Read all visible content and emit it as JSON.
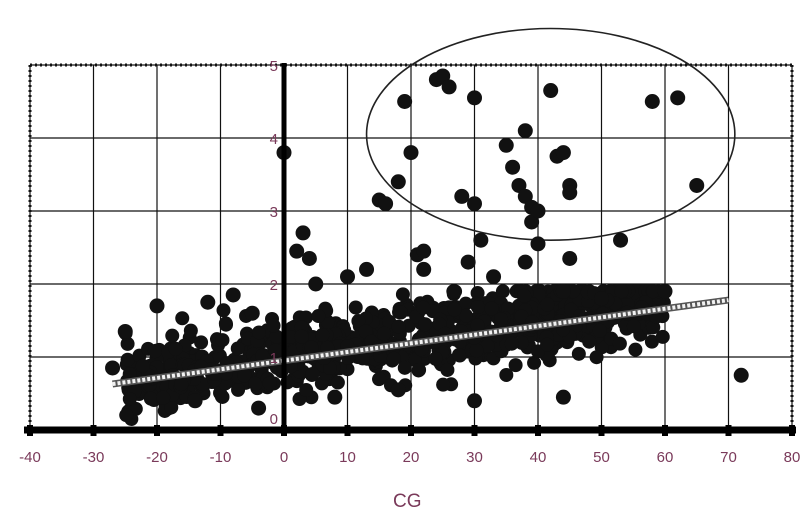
{
  "chart_data": {
    "type": "scatter",
    "title": "",
    "xlabel": "CG",
    "ylabel": "",
    "xlim": [
      -40,
      80
    ],
    "ylim": [
      0,
      5
    ],
    "x_ticks": [
      -40,
      -30,
      -20,
      -10,
      0,
      10,
      20,
      30,
      40,
      50,
      60,
      70,
      80
    ],
    "y_ticks": [
      0,
      1,
      2,
      3,
      4,
      5
    ],
    "grid": true,
    "legend": "none",
    "colors": {
      "points": "#111111",
      "grid": "#111111",
      "tick_labels": "#7a3a5a",
      "trend": "#f2f2f2"
    },
    "trend_line": {
      "x": [
        -27,
        70
      ],
      "y": [
        0.63,
        1.78
      ]
    },
    "annotation_ellipse": {
      "center": [
        42,
        4.05
      ],
      "radii": [
        29,
        1.45
      ]
    },
    "cluster": {
      "x_range": [
        -25,
        60
      ],
      "y_center_at_x_min": 0.65,
      "slope_per_unit": 0.0135,
      "spread": 0.45,
      "count": 900
    },
    "points": [
      [
        0,
        3.8
      ],
      [
        2,
        2.45
      ],
      [
        3,
        2.7
      ],
      [
        4,
        2.35
      ],
      [
        15,
        3.15
      ],
      [
        16,
        3.1
      ],
      [
        18,
        3.4
      ],
      [
        19,
        4.5
      ],
      [
        20,
        3.8
      ],
      [
        21,
        2.4
      ],
      [
        22,
        2.45
      ],
      [
        24,
        4.8
      ],
      [
        25,
        4.85
      ],
      [
        26,
        4.7
      ],
      [
        28,
        3.2
      ],
      [
        29,
        2.3
      ],
      [
        30,
        4.55
      ],
      [
        30,
        3.1
      ],
      [
        31,
        2.6
      ],
      [
        35,
        3.9
      ],
      [
        36,
        3.6
      ],
      [
        37,
        3.35
      ],
      [
        38,
        3.2
      ],
      [
        38,
        4.1
      ],
      [
        39,
        2.85
      ],
      [
        39,
        3.05
      ],
      [
        40,
        3.0
      ],
      [
        40,
        2.55
      ],
      [
        42,
        4.65
      ],
      [
        43,
        3.75
      ],
      [
        44,
        3.8
      ],
      [
        45,
        3.35
      ],
      [
        45,
        3.25
      ],
      [
        45,
        2.35
      ],
      [
        53,
        2.6
      ],
      [
        58,
        4.5
      ],
      [
        62,
        4.55
      ],
      [
        65,
        3.35
      ],
      [
        72,
        0.75
      ],
      [
        60,
        1.9
      ],
      [
        -27,
        0.85
      ],
      [
        -25,
        1.35
      ],
      [
        -20,
        1.7
      ],
      [
        -12,
        1.75
      ],
      [
        -8,
        1.85
      ],
      [
        -5,
        1.6
      ],
      [
        5,
        2.0
      ],
      [
        10,
        2.1
      ],
      [
        13,
        2.2
      ],
      [
        22,
        2.2
      ],
      [
        33,
        2.1
      ],
      [
        38,
        2.3
      ],
      [
        44,
        1.9
      ],
      [
        50,
        1.8
      ],
      [
        54,
        1.6
      ],
      [
        8,
        0.45
      ],
      [
        18,
        0.55
      ],
      [
        30,
        0.4
      ],
      [
        44,
        0.45
      ],
      [
        -14,
        0.4
      ],
      [
        -4,
        0.3
      ]
    ]
  }
}
